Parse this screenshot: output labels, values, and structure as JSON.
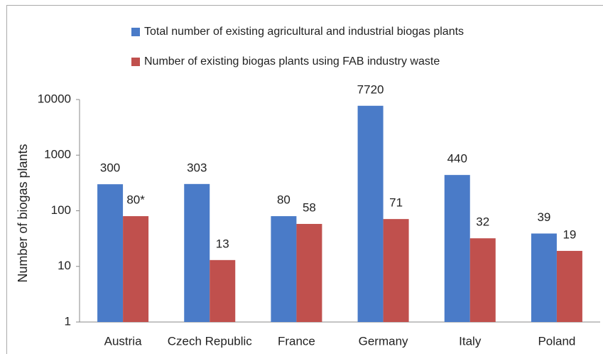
{
  "chart_data": {
    "type": "bar",
    "y_label": "Number of biogas plants",
    "categories": [
      "Austria",
      "Czech Republic",
      "France",
      "Germany",
      "Italy",
      "Poland"
    ],
    "series": [
      {
        "name": "Total number of existing agricultural and industrial biogas plants",
        "color": "#4a7bc8",
        "values": [
          300,
          303,
          80,
          7720,
          440,
          39
        ]
      },
      {
        "name": "Number of existing biogas plants using FAB industry waste",
        "color": "#c0504d",
        "values": [
          80,
          13,
          58,
          71,
          32,
          19
        ],
        "value_labels": [
          "80*",
          "13",
          "58",
          "71",
          "32",
          "19"
        ]
      }
    ],
    "ylim": [
      1,
      10000
    ],
    "yticks": [
      1,
      10,
      100,
      1000,
      10000
    ],
    "log_scale": true,
    "grid": false
  }
}
